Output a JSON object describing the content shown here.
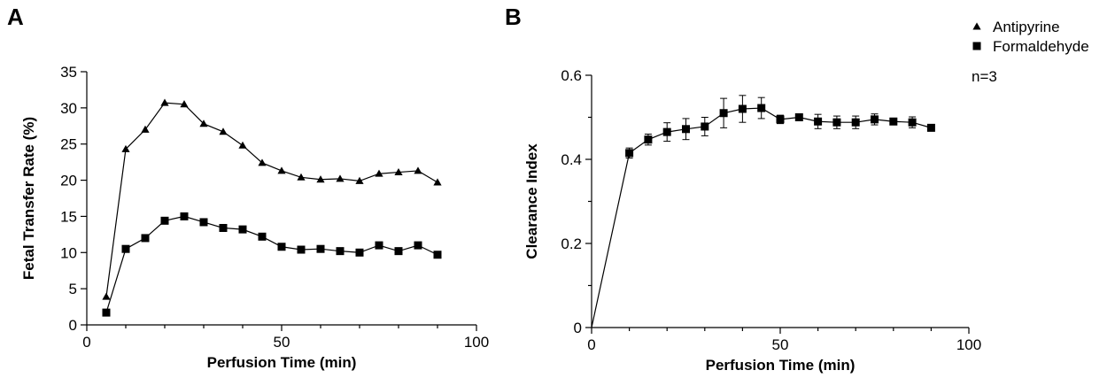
{
  "chart_data": [
    {
      "panel": "A",
      "type": "line",
      "xlabel": "Perfusion Time (min)",
      "ylabel": "Fetal Transfer Rate (%)",
      "xlim": [
        0,
        100
      ],
      "ylim": [
        0,
        35
      ],
      "xticks": [
        0,
        50,
        100
      ],
      "yticks": [
        0,
        5,
        10,
        15,
        20,
        25,
        30,
        35
      ],
      "grid": false,
      "series": [
        {
          "name": "Antipyrine",
          "marker": "triangle",
          "x": [
            5,
            10,
            15,
            20,
            25,
            30,
            35,
            40,
            45,
            50,
            55,
            60,
            65,
            70,
            75,
            80,
            85,
            90
          ],
          "values": [
            3.9,
            24.3,
            27.0,
            30.7,
            30.5,
            27.8,
            26.7,
            24.8,
            22.4,
            21.3,
            20.4,
            20.1,
            20.2,
            19.9,
            20.9,
            21.1,
            21.3,
            19.7
          ]
        },
        {
          "name": "Formaldehyde",
          "marker": "square",
          "x": [
            5,
            10,
            15,
            20,
            25,
            30,
            35,
            40,
            45,
            50,
            55,
            60,
            65,
            70,
            75,
            80,
            85,
            90
          ],
          "values": [
            1.7,
            10.5,
            12.0,
            14.4,
            15.0,
            14.2,
            13.4,
            13.2,
            12.2,
            10.8,
            10.4,
            10.5,
            10.2,
            10.0,
            11.0,
            10.2,
            11.0,
            9.7
          ]
        }
      ]
    },
    {
      "panel": "B",
      "type": "line",
      "xlabel": "Perfusion Time (min)",
      "ylabel": "Clearance Index",
      "xlim": [
        0,
        100
      ],
      "ylim": [
        0,
        0.6
      ],
      "xticks": [
        0,
        50,
        100
      ],
      "yticks": [
        0,
        0.2,
        0.4,
        0.6
      ],
      "ytick_labels": [
        "0",
        "0.2",
        "0.4",
        "0.6"
      ],
      "grid": false,
      "legend_placement": "top-right",
      "legend": [
        "Antipyrine",
        "Formaldehyde"
      ],
      "annotation": "n=3",
      "series": [
        {
          "marker": "square",
          "x": [
            0,
            10,
            15,
            20,
            25,
            30,
            35,
            40,
            45,
            50,
            55,
            60,
            65,
            70,
            75,
            80,
            85,
            90
          ],
          "values": [
            0.0,
            0.415,
            0.447,
            0.465,
            0.472,
            0.478,
            0.51,
            0.52,
            0.522,
            0.495,
            0.5,
            0.49,
            0.488,
            0.488,
            0.495,
            0.49,
            0.488,
            0.475
          ],
          "error": [
            0,
            0.012,
            0.013,
            0.022,
            0.025,
            0.022,
            0.035,
            0.032,
            0.025,
            0.01,
            0.005,
            0.017,
            0.015,
            0.015,
            0.013,
            0.005,
            0.013,
            0.005
          ]
        }
      ]
    }
  ]
}
